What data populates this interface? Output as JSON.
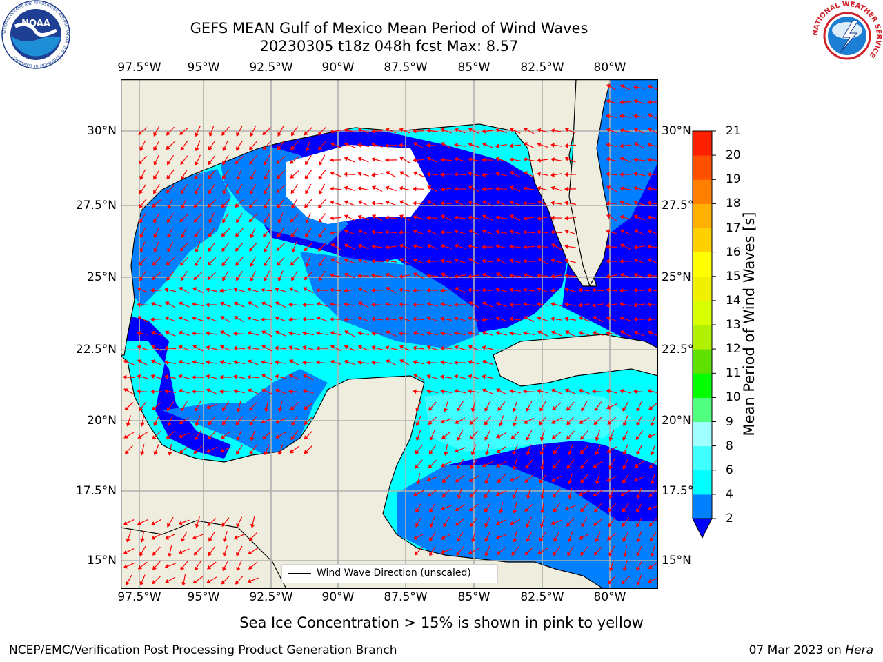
{
  "title": {
    "line1": "GEFS MEAN Gulf of Mexico Mean Period of Wind Waves",
    "line2": "20230305 t18z 048h fcst   Max: 8.57"
  },
  "map": {
    "lon_labels": [
      "97.5°W",
      "95°W",
      "92.5°W",
      "90°W",
      "87.5°W",
      "85°W",
      "82.5°W",
      "80°W"
    ],
    "lat_labels_left": [
      "30°N",
      "27.5°N",
      "25°N",
      "22.5°N",
      "20°N",
      "17.5°N",
      "15°N"
    ],
    "lat_labels_right": [
      "30°N",
      "27.5°N",
      "25°N",
      "22.5°N",
      "20°N",
      "17.5°N",
      "15°N"
    ],
    "land_color": "#efedde",
    "grid_color": "#b0b0b0",
    "arrow_color": "#ff0000",
    "legend_label": "Wind Wave Direction (unscaled)"
  },
  "colorbar": {
    "label": "Mean Period of Wind Waves [s]",
    "ticks": [
      "2",
      "4",
      "6",
      "8",
      "9",
      "10",
      "11",
      "12",
      "13",
      "14",
      "15",
      "16",
      "17",
      "18",
      "19",
      "20",
      "21"
    ],
    "colors": [
      "#0000ff",
      "#0080ff",
      "#00ffff",
      "#40ffff",
      "#a0ffff",
      "#50ff80",
      "#00ff00",
      "#60e000",
      "#b0f000",
      "#d8ff00",
      "#f0f000",
      "#ffff00",
      "#ffd000",
      "#ffb000",
      "#ff8000",
      "#ff5000",
      "#ff2000",
      "#ff0000"
    ],
    "under_color": "#0000ff"
  },
  "footnote": "Sea Ice Concentration > 15% is shown in pink to yellow",
  "footer": {
    "left": "NCEP/EMC/Verification Post Processing Product Generation Branch",
    "right_prefix": "07 Mar 2023 on ",
    "right_host": "Hera"
  },
  "logos": {
    "noaa_text": "NOAA",
    "noaa_ring": "NATIONAL OCEANIC AND ATMOSPHERIC ADMINISTRATION · U.S. DEPARTMENT OF COMMERCE",
    "nws_ring": "NATIONAL WEATHER SERVICE"
  }
}
